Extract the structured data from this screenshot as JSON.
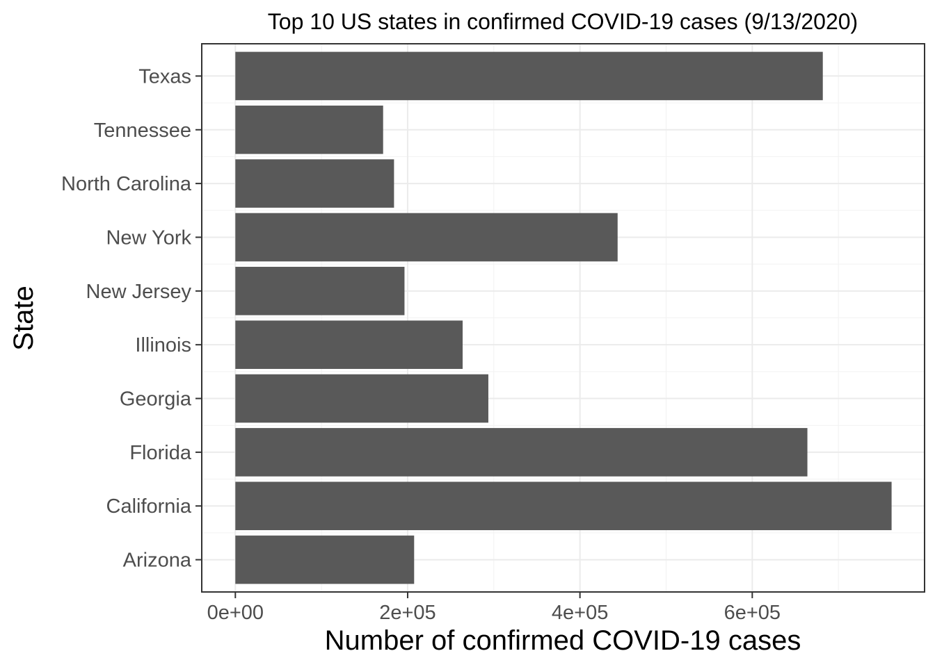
{
  "chart_data": {
    "type": "bar",
    "orientation": "horizontal",
    "title": "Top 10 US states in confirmed COVID-19 cases (9/13/2020)",
    "xlabel": "Number of confirmed COVID-19 cases",
    "ylabel": "State",
    "categories": [
      "Arizona",
      "California",
      "Florida",
      "Georgia",
      "Illinois",
      "New Jersey",
      "New York",
      "North Carolina",
      "Tennessee",
      "Texas"
    ],
    "values": [
      207523,
      761728,
      663994,
      293662,
      263823,
      196336,
      443720,
      184189,
      171522,
      681885
    ],
    "xlim": [
      -39000,
      800000
    ],
    "xticks": [
      0,
      200000,
      400000,
      600000
    ],
    "xtick_labels": [
      "0e+00",
      "2e+05",
      "4e+05",
      "6e+05"
    ],
    "grid": true,
    "bar_color": "#595959",
    "legend": "none"
  }
}
